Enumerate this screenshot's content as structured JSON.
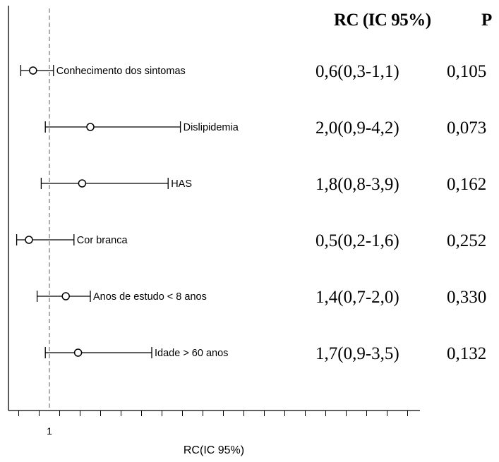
{
  "chart_data": {
    "type": "forest",
    "title": "",
    "xlabel": "RC(IC 95%)",
    "ylabel": "",
    "reference_line": 1,
    "x_tick_labels": [
      "1"
    ],
    "headers": {
      "estimate": "RC (IC 95%)",
      "p": "P"
    },
    "rows": [
      {
        "label": "Conhecimento dos sintomas",
        "or": 0.6,
        "lower": 0.3,
        "upper": 1.1,
        "ci_text": "0,6(0,3-1,1)",
        "p_text": "0,105"
      },
      {
        "label": "Dislipidemia",
        "or": 2.0,
        "lower": 0.9,
        "upper": 4.2,
        "ci_text": "2,0(0,9-4,2)",
        "p_text": "0,073"
      },
      {
        "label": "HAS",
        "or": 1.8,
        "lower": 0.8,
        "upper": 3.9,
        "ci_text": "1,8(0,8-3,9)",
        "p_text": "0,162"
      },
      {
        "label": "Cor branca",
        "or": 0.5,
        "lower": 0.2,
        "upper": 1.6,
        "ci_text": "0,5(0,2-1,6)",
        "p_text": "0,252"
      },
      {
        "label": "Anos de estudo < 8 anos",
        "or": 1.4,
        "lower": 0.7,
        "upper": 2.0,
        "ci_text": "1,4(0,7-2,0)",
        "p_text": "0,330"
      },
      {
        "label": "Idade > 60 anos",
        "or": 1.7,
        "lower": 0.9,
        "upper": 3.5,
        "ci_text": "1,7(0,9-3,5)",
        "p_text": "0,132"
      }
    ],
    "grid": false,
    "legend": "none"
  }
}
